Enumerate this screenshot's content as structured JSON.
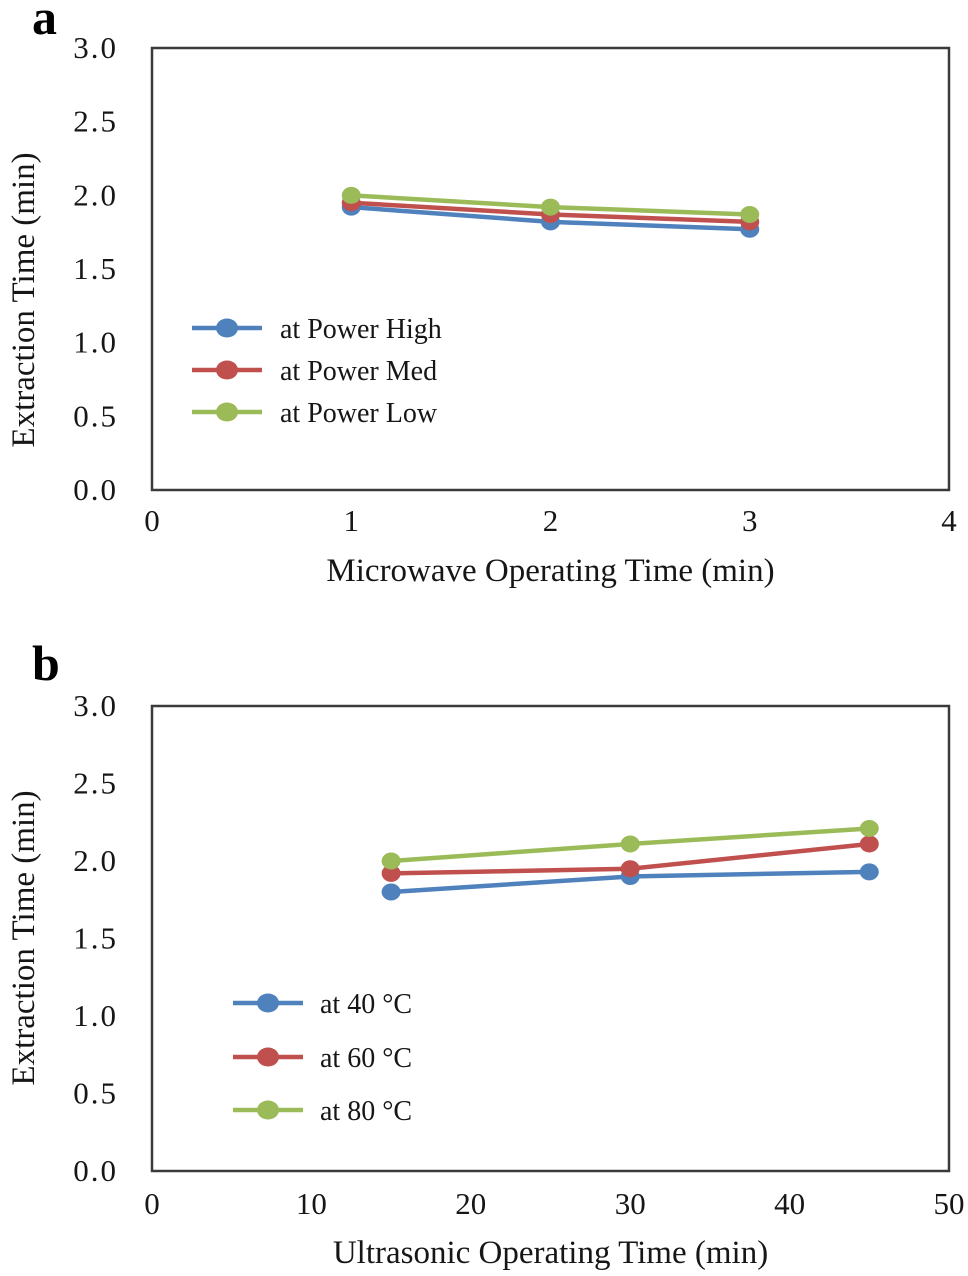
{
  "figure": {
    "background": "#ffffff",
    "axis_color": "#3a3a3a",
    "text_color": "#161616"
  },
  "panels": [
    {
      "label": "a",
      "chart_data": {
        "type": "line",
        "x": [
          1,
          2,
          3
        ],
        "series": [
          {
            "name": "at Power High",
            "color": "#4F81BD",
            "values": [
              1.92,
              1.82,
              1.77
            ]
          },
          {
            "name": "at Power Med",
            "color": "#C0504D",
            "values": [
              1.95,
              1.87,
              1.82
            ]
          },
          {
            "name": "at Power Low",
            "color": "#9BBB59",
            "values": [
              2.0,
              1.92,
              1.87
            ]
          }
        ],
        "legend_labels": [
          " at Power High",
          "at Power Med",
          "at Power Low"
        ],
        "title": "",
        "xlabel": "Microwave Operating Time (min)",
        "ylabel": "Extraction  Time (min)",
        "xlim": [
          0,
          4
        ],
        "ylim": [
          0.0,
          3.0
        ],
        "xticks": [
          0,
          1,
          2,
          3,
          4
        ],
        "xtick_labels": [
          "0",
          "1",
          "2",
          "3",
          "4"
        ],
        "yticks": [
          0.0,
          0.5,
          1.0,
          1.5,
          2.0,
          2.5,
          3.0
        ],
        "ytick_labels": [
          "0.0",
          "0.5",
          "1.0",
          "1.5",
          "2.0",
          "2.5",
          "3.0"
        ],
        "grid": false,
        "legend_position": "inside-left-middle",
        "marker": "circle"
      }
    },
    {
      "label": "b",
      "chart_data": {
        "type": "line",
        "x": [
          15,
          30,
          45
        ],
        "series": [
          {
            "name": "at 40 °C",
            "color": "#4F81BD",
            "values": [
              1.8,
              1.9,
              1.93
            ]
          },
          {
            "name": "at 60 °C",
            "color": "#C0504D",
            "values": [
              1.92,
              1.95,
              2.11
            ]
          },
          {
            "name": "at 80 °C",
            "color": "#9BBB59",
            "values": [
              2.0,
              2.11,
              2.21
            ]
          }
        ],
        "legend_labels": [
          "at 40 °C",
          "at 60 °C",
          "at 80 °C"
        ],
        "title": "",
        "xlabel": "Ultrasonic Operating Time (min)",
        "ylabel": "Extraction Time (min)",
        "xlim": [
          0,
          50
        ],
        "ylim": [
          0.0,
          3.0
        ],
        "xticks": [
          0,
          10,
          20,
          30,
          40,
          50
        ],
        "xtick_labels": [
          "0",
          "10",
          "20",
          "30",
          "40",
          "50"
        ],
        "yticks": [
          0.0,
          0.5,
          1.0,
          1.5,
          2.0,
          2.5,
          3.0
        ],
        "ytick_labels": [
          "0.0",
          "0.5",
          "1.0",
          "1.5",
          "2.0",
          "2.5",
          "3.0"
        ],
        "grid": false,
        "legend_position": "inside-left-middle",
        "marker": "circle"
      }
    }
  ]
}
